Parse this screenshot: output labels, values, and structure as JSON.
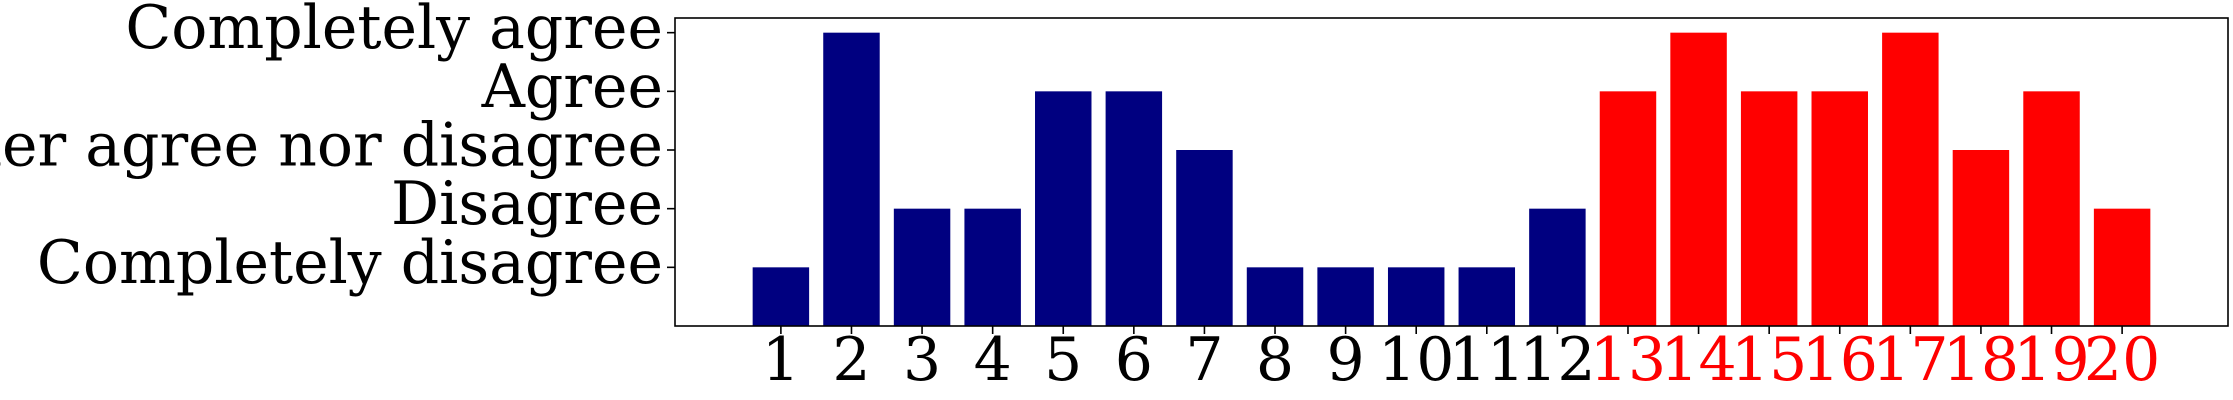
{
  "chart_data": {
    "type": "bar",
    "title": "",
    "xlabel": "",
    "ylabel": "",
    "categories": [
      "1",
      "2",
      "3",
      "4",
      "5",
      "6",
      "7",
      "8",
      "9",
      "10",
      "11",
      "12",
      "13",
      "14",
      "15",
      "16",
      "17",
      "18",
      "19",
      "20"
    ],
    "values": [
      1,
      5,
      2,
      2,
      4,
      4,
      3,
      1,
      1,
      1,
      1,
      2,
      4,
      5,
      4,
      4,
      5,
      3,
      4,
      2
    ],
    "y_tick_labels": [
      {
        "value": 1,
        "label": "Completely disagree"
      },
      {
        "value": 2,
        "label": "Disagree"
      },
      {
        "value": 3,
        "label": "Neither agree nor disagree"
      },
      {
        "value": 4,
        "label": "Agree"
      },
      {
        "value": 5,
        "label": "Completely agree"
      }
    ],
    "ylim": [
      0,
      5.25
    ],
    "xlim": [
      -0.5,
      21.5
    ],
    "grid": false,
    "colors": {
      "group_1": "#000080",
      "group_2": "#ff0000",
      "group_1_tick_label": "#000000",
      "group_2_tick_label": "#ff0000"
    },
    "group_2_categories": [
      "13",
      "14",
      "15",
      "16",
      "17",
      "18",
      "19",
      "20"
    ]
  }
}
